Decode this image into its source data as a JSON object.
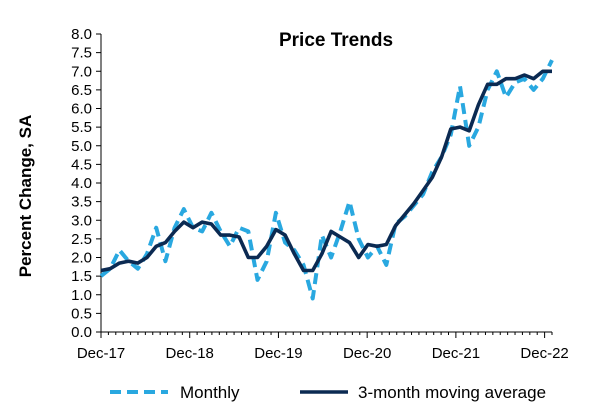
{
  "chart_data": {
    "type": "line",
    "title": "Price Trends",
    "xlabel": "",
    "ylabel": "Percent Change, SA",
    "ylim": [
      0,
      8
    ],
    "yticks": [
      "0.0",
      "0.5",
      "1.0",
      "1.5",
      "2.0",
      "2.5",
      "3.0",
      "3.5",
      "4.0",
      "4.5",
      "5.0",
      "5.5",
      "6.0",
      "6.5",
      "7.0",
      "7.5",
      "8.0"
    ],
    "xlim": [
      0,
      61
    ],
    "xticks": [
      {
        "index": 0,
        "label": "Dec-17"
      },
      {
        "index": 12,
        "label": "Dec-18"
      },
      {
        "index": 24,
        "label": "Dec-19"
      },
      {
        "index": 36,
        "label": "Dec-20"
      },
      {
        "index": 48,
        "label": "Dec-21"
      },
      {
        "index": 60,
        "label": "Dec-22"
      }
    ],
    "grid": false,
    "legend": "bottom",
    "series": [
      {
        "name": "Monthly",
        "color": "#29A8E0",
        "style": "dashed",
        "values": [
          1.5,
          1.7,
          2.2,
          1.9,
          1.7,
          2.1,
          2.8,
          1.9,
          2.8,
          3.3,
          2.8,
          2.7,
          3.2,
          2.7,
          2.3,
          2.8,
          2.7,
          1.4,
          1.9,
          3.2,
          2.4,
          2.2,
          1.8,
          0.9,
          2.6,
          2.0,
          2.7,
          3.5,
          2.5,
          2.0,
          2.3,
          1.8,
          2.9,
          3.1,
          3.4,
          3.7,
          4.3,
          4.7,
          5.3,
          6.6,
          5.0,
          5.5,
          6.5,
          7.0,
          6.3,
          6.7,
          6.8,
          6.5,
          6.8,
          7.3
        ]
      },
      {
        "name": "3-month moving average",
        "color": "#0B2A52",
        "style": "solid",
        "values": [
          1.65,
          1.7,
          1.85,
          1.9,
          1.85,
          2.0,
          2.3,
          2.4,
          2.7,
          2.95,
          2.8,
          2.95,
          2.9,
          2.6,
          2.6,
          2.55,
          2.0,
          2.0,
          2.3,
          2.75,
          2.6,
          2.1,
          1.65,
          1.65,
          2.1,
          2.7,
          2.55,
          2.4,
          2.0,
          2.35,
          2.3,
          2.35,
          2.85,
          3.15,
          3.45,
          3.8,
          4.15,
          4.7,
          5.45,
          5.5,
          5.4,
          6.1,
          6.65,
          6.65,
          6.8,
          6.8,
          6.9,
          6.8,
          7.0,
          7.0
        ]
      }
    ]
  }
}
